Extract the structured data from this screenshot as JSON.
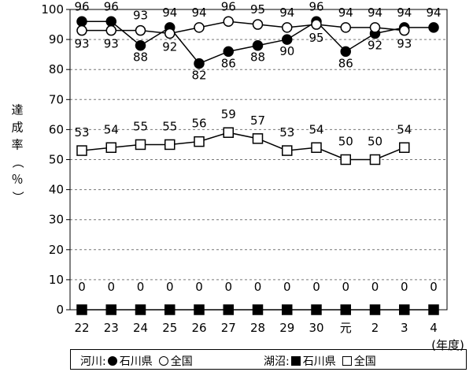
{
  "chart_data": {
    "type": "line",
    "ylabel": "達成率（％）",
    "xunit": "(年度)",
    "ylim": [
      0,
      100
    ],
    "yticks": [
      "0",
      "10",
      "20",
      "30",
      "40",
      "50",
      "60",
      "70",
      "80",
      "90",
      "100"
    ],
    "categories": [
      "22",
      "23",
      "24",
      "25",
      "26",
      "27",
      "28",
      "29",
      "30",
      "元",
      "2",
      "3",
      "4"
    ],
    "grid": "horizontal-dashed",
    "series": [
      {
        "group": "河川",
        "name": "石川県",
        "marker": "circle-filled",
        "values": [
          96,
          96,
          88,
          94,
          82,
          86,
          88,
          90,
          96,
          86,
          92,
          94,
          94
        ]
      },
      {
        "group": "河川",
        "name": "全国",
        "marker": "circle-open",
        "values": [
          93,
          93,
          93,
          92,
          94,
          96,
          95,
          94,
          95,
          94,
          94,
          93,
          null
        ]
      },
      {
        "group": "湖沼",
        "name": "石川県",
        "marker": "square-filled",
        "values": [
          0,
          0,
          0,
          0,
          0,
          0,
          0,
          0,
          0,
          0,
          0,
          0,
          0
        ]
      },
      {
        "group": "湖沼",
        "name": "全国",
        "marker": "square-open",
        "values": [
          53,
          54,
          55,
          55,
          56,
          59,
          57,
          53,
          54,
          50,
          50,
          54,
          null
        ]
      }
    ]
  },
  "legend": {
    "river_label": "河川:",
    "lake_label": "湖沼:",
    "ishikawa": "石川県",
    "national": "全国"
  }
}
